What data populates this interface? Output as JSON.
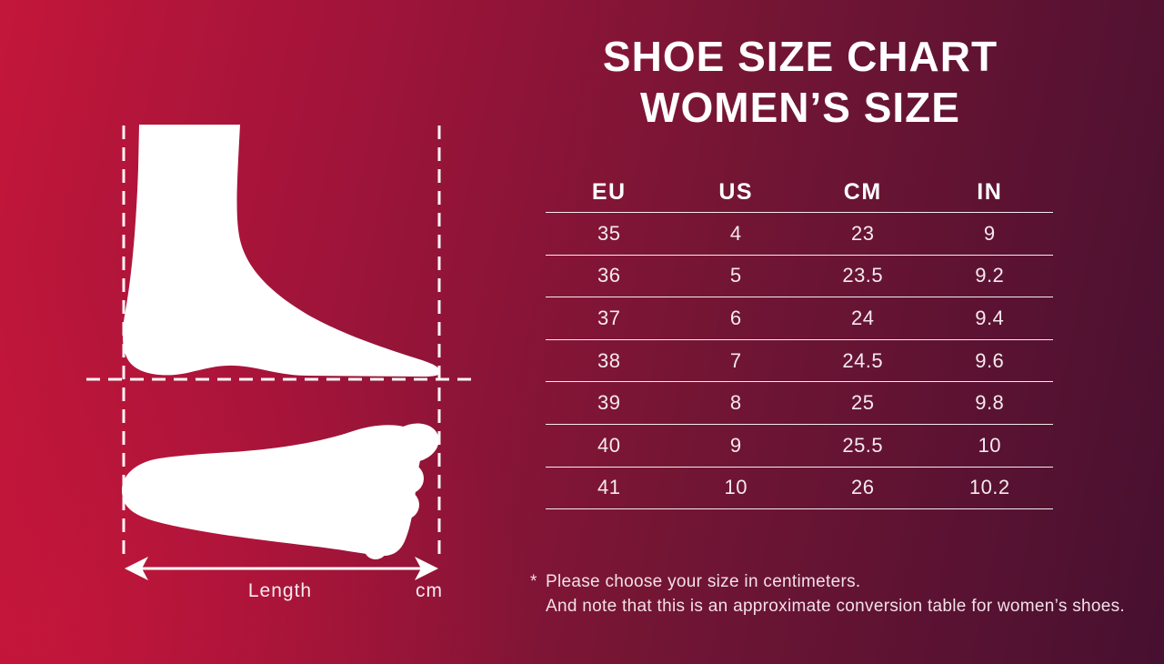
{
  "title": {
    "line1": "SHOE SIZE CHART",
    "line2": "WOMEN’S SIZE"
  },
  "table": {
    "headers": [
      "EU",
      "US",
      "CM",
      "IN"
    ],
    "rows": [
      [
        "35",
        "4",
        "23",
        "9"
      ],
      [
        "36",
        "5",
        "23.5",
        "9.2"
      ],
      [
        "37",
        "6",
        "24",
        "9.4"
      ],
      [
        "38",
        "7",
        "24.5",
        "9.6"
      ],
      [
        "39",
        "8",
        "25",
        "9.8"
      ],
      [
        "40",
        "9",
        "25.5",
        "10"
      ],
      [
        "41",
        "10",
        "26",
        "10.2"
      ]
    ]
  },
  "notes": {
    "marker": "*",
    "line1": "Please choose your size in centimeters.",
    "line2": "And note that this is an approximate conversion table for women’s shoes."
  },
  "diagram": {
    "length_label": "Length",
    "unit_label": "cm"
  },
  "colors": {
    "gradient_start": "#c3163a",
    "gradient_end": "#471030",
    "text": "#ffffff"
  }
}
